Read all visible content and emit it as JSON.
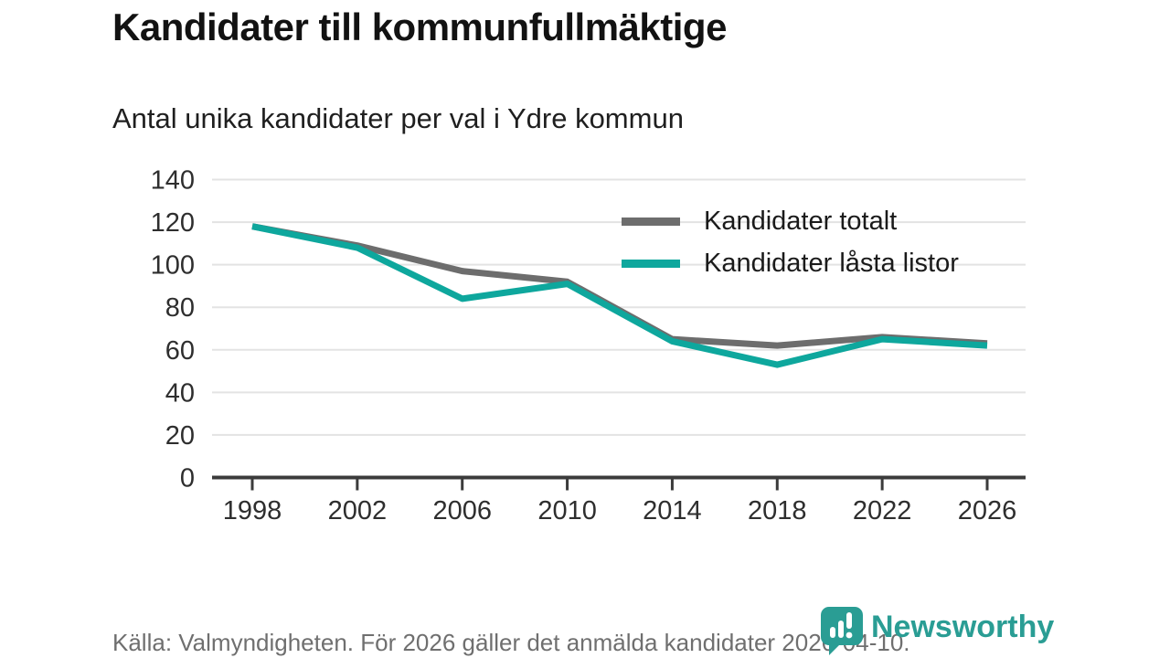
{
  "header": {
    "title": "Kandidater till kommunfullmäktige",
    "subtitle": "Antal unika kandidater per val i Ydre kommun"
  },
  "chart_data": {
    "type": "line",
    "categories": [
      "1998",
      "2002",
      "2006",
      "2010",
      "2014",
      "2018",
      "2022",
      "2026"
    ],
    "series": [
      {
        "name": "Kandidater totalt",
        "color": "#6d6d6d",
        "values": [
          118,
          109,
          97,
          92,
          65,
          62,
          66,
          63
        ]
      },
      {
        "name": "Kandidater låsta listor",
        "color": "#0ea79d",
        "values": [
          118,
          108,
          84,
          91,
          64,
          53,
          65,
          62
        ]
      }
    ],
    "title": "Kandidater till kommunfullmäktige",
    "subtitle": "Antal unika kandidater per val i Ydre kommun",
    "xlabel": "",
    "ylabel": "",
    "ylim": [
      0,
      140
    ],
    "yticks": [
      0,
      20,
      40,
      60,
      80,
      100,
      120,
      140
    ],
    "grid": "horizontal",
    "gridline_color": "#e3e3e3",
    "axis_color": "#3b3b3b",
    "tick_label_color": "#2e2e2e",
    "legend_position": "top-right-inside"
  },
  "footer": {
    "source": "Källa: Valmyndigheten. För 2026 gäller det anmälda kandidater 2026-04-10.",
    "brand": "Newsworthy",
    "brand_color": "#2a9d94"
  }
}
